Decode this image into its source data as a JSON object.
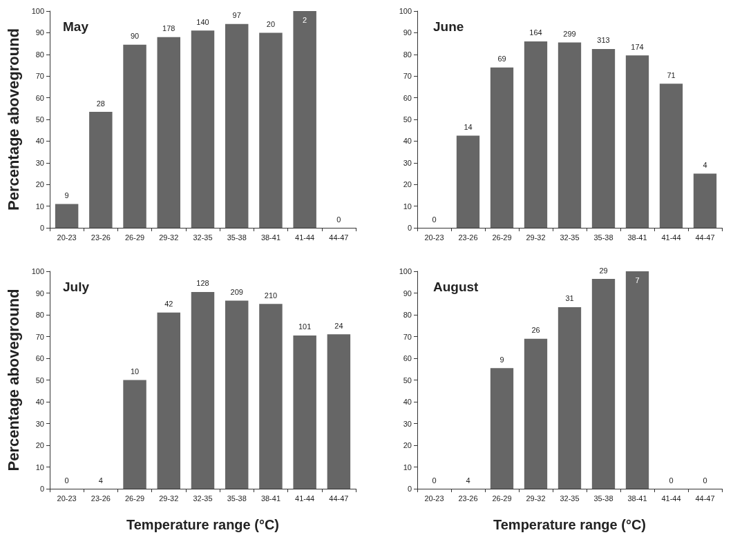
{
  "chart_data": [
    {
      "type": "bar",
      "title": "May",
      "ylabel": "Percentage aboveground",
      "categories": [
        "20-23",
        "23-26",
        "26-29",
        "29-32",
        "32-35",
        "35-38",
        "38-41",
        "41-44",
        "44-47"
      ],
      "values": [
        11,
        53.5,
        84.5,
        88,
        91,
        94,
        90,
        100,
        0
      ],
      "color": "#666666",
      "ylim": [
        0,
        100
      ],
      "yticks": [
        0,
        10,
        20,
        30,
        40,
        50,
        60,
        70,
        80,
        90,
        100
      ],
      "grid": false,
      "annotations": [
        {
          "text": "9",
          "x": "20-23",
          "y": 11
        },
        {
          "text": "28",
          "x": "23-26",
          "y": 53.5
        },
        {
          "text": "90",
          "x": "26-29",
          "y": 84.5
        },
        {
          "text": "178",
          "x": "29-32",
          "y": 88
        },
        {
          "text": "140",
          "x": "32-35",
          "y": 91
        },
        {
          "text": "97",
          "x": "35-38",
          "y": 94
        },
        {
          "text": "20",
          "x": "38-41",
          "y": 90
        },
        {
          "text": "2",
          "x": "41-44",
          "y": 100
        },
        {
          "text": "0",
          "x": "44-47",
          "y": 0
        }
      ]
    },
    {
      "type": "bar",
      "title": "June",
      "categories": [
        "20-23",
        "23-26",
        "26-29",
        "29-32",
        "32-35",
        "35-38",
        "38-41",
        "41-44",
        "44-47"
      ],
      "values": [
        0,
        42.5,
        74,
        86,
        85.5,
        82.5,
        79.5,
        66.5,
        25
      ],
      "color": "#666666",
      "ylim": [
        0,
        100
      ],
      "yticks": [
        0,
        10,
        20,
        30,
        40,
        50,
        60,
        70,
        80,
        90,
        100
      ],
      "grid": false,
      "annotations": [
        {
          "text": "0",
          "x": "20-23",
          "y": 0
        },
        {
          "text": "14",
          "x": "23-26",
          "y": 42.5
        },
        {
          "text": "69",
          "x": "26-29",
          "y": 74
        },
        {
          "text": "164",
          "x": "29-32",
          "y": 86
        },
        {
          "text": "299",
          "x": "32-35",
          "y": 85.5
        },
        {
          "text": "313",
          "x": "35-38",
          "y": 82.5
        },
        {
          "text": "174",
          "x": "38-41",
          "y": 79.5
        },
        {
          "text": "71",
          "x": "41-44",
          "y": 66.5
        },
        {
          "text": "4",
          "x": "44-47",
          "y": 25
        }
      ]
    },
    {
      "type": "bar",
      "title": "July",
      "ylabel": "Percentage aboveground",
      "xlabel": "Temperature range (°C)",
      "categories": [
        "20-23",
        "23-26",
        "26-29",
        "29-32",
        "32-35",
        "35-38",
        "38-41",
        "41-44",
        "44-47"
      ],
      "values": [
        0,
        0,
        50,
        81,
        90.5,
        86.5,
        85,
        70.5,
        71
      ],
      "color": "#666666",
      "ylim": [
        0,
        100
      ],
      "yticks": [
        0,
        10,
        20,
        30,
        40,
        50,
        60,
        70,
        80,
        90,
        100
      ],
      "grid": false,
      "annotations": [
        {
          "text": "0",
          "x": "20-23",
          "y": 0
        },
        {
          "text": "4",
          "x": "23-26",
          "y": 0
        },
        {
          "text": "10",
          "x": "26-29",
          "y": 50
        },
        {
          "text": "42",
          "x": "29-32",
          "y": 81
        },
        {
          "text": "128",
          "x": "32-35",
          "y": 90.5
        },
        {
          "text": "209",
          "x": "35-38",
          "y": 86.5
        },
        {
          "text": "210",
          "x": "38-41",
          "y": 85
        },
        {
          "text": "101",
          "x": "41-44",
          "y": 70.5
        },
        {
          "text": "24",
          "x": "44-47",
          "y": 71
        }
      ]
    },
    {
      "type": "bar",
      "title": "August",
      "xlabel": "Temperature range (°C)",
      "categories": [
        "20-23",
        "23-26",
        "26-29",
        "29-32",
        "32-35",
        "35-38",
        "38-41",
        "41-44",
        "44-47"
      ],
      "values": [
        0,
        0,
        55.5,
        69,
        83.5,
        96.5,
        100,
        0,
        0
      ],
      "color": "#666666",
      "ylim": [
        0,
        100
      ],
      "yticks": [
        0,
        10,
        20,
        30,
        40,
        50,
        60,
        70,
        80,
        90,
        100
      ],
      "grid": false,
      "annotations": [
        {
          "text": "0",
          "x": "20-23",
          "y": 0
        },
        {
          "text": "4",
          "x": "23-26",
          "y": 0
        },
        {
          "text": "9",
          "x": "26-29",
          "y": 55.5
        },
        {
          "text": "26",
          "x": "29-32",
          "y": 69
        },
        {
          "text": "31",
          "x": "32-35",
          "y": 83.5
        },
        {
          "text": "29",
          "x": "35-38",
          "y": 96.5
        },
        {
          "text": "7",
          "x": "38-41",
          "y": 100
        },
        {
          "text": "0",
          "x": "41-44",
          "y": 0
        },
        {
          "text": "0",
          "x": "44-47",
          "y": 0
        }
      ]
    }
  ]
}
